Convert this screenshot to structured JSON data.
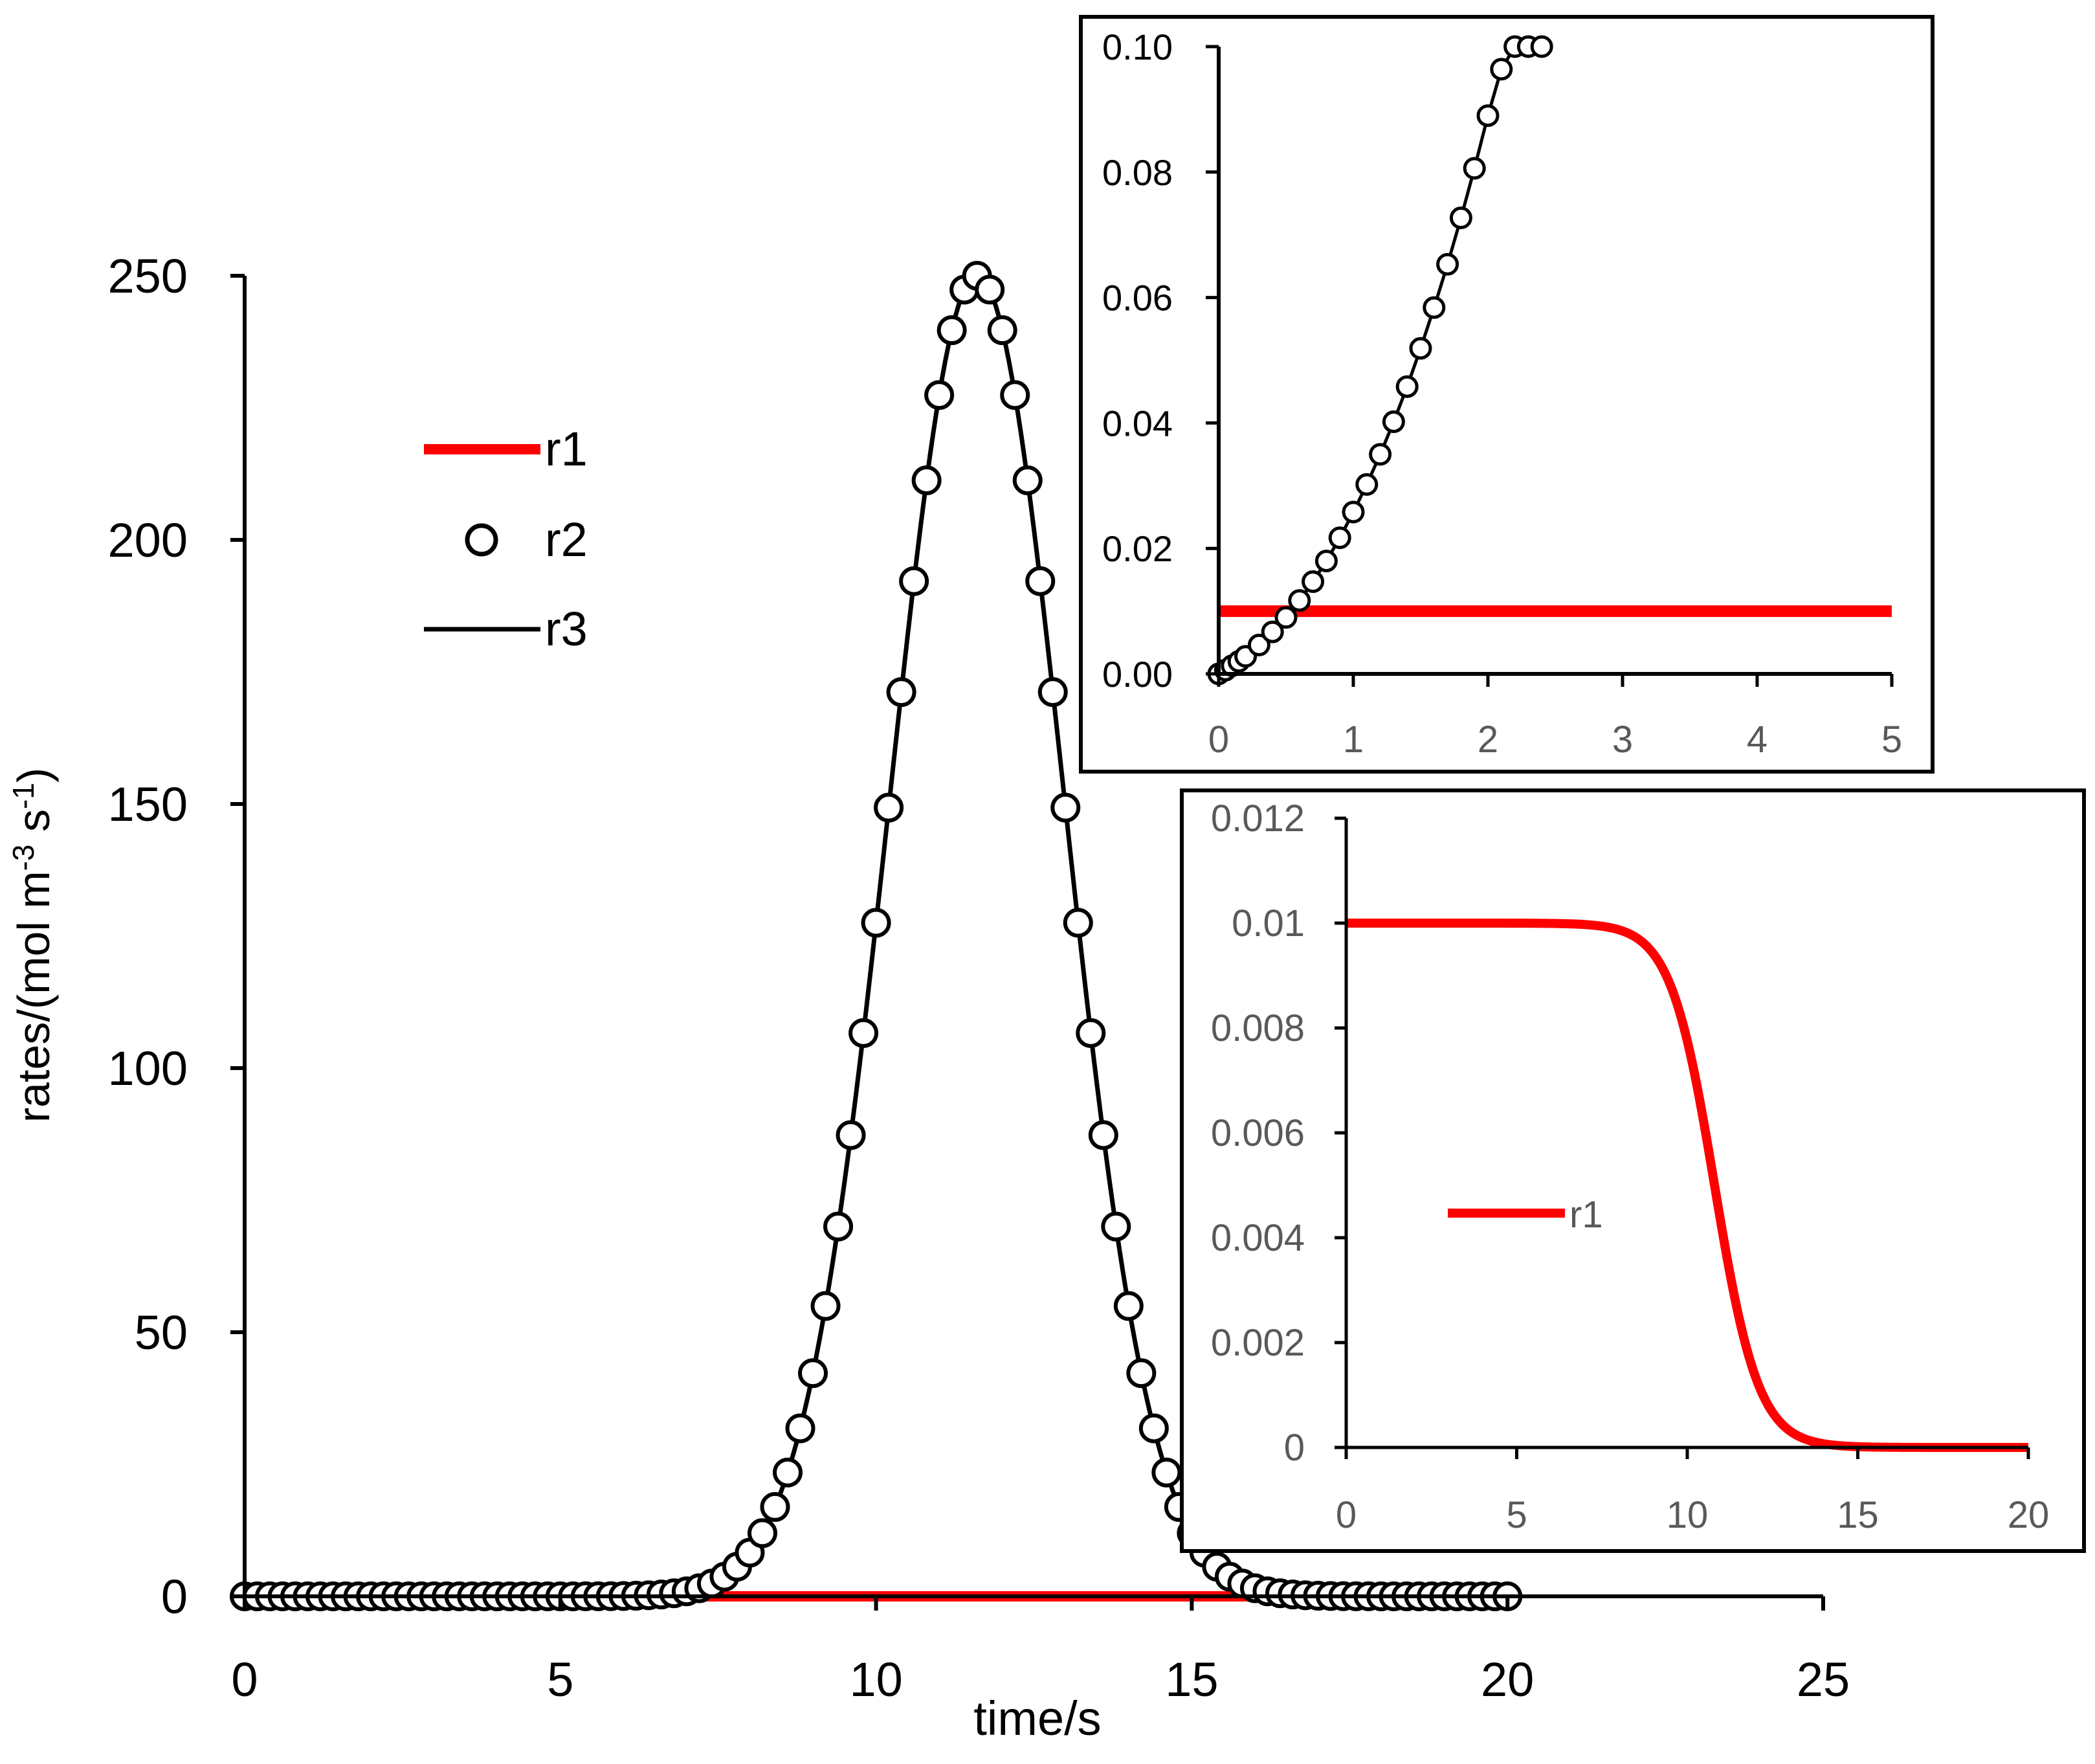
{
  "colors": {
    "r1": "#ff0000",
    "r2_edge": "#000000",
    "r2_face": "#ffffff",
    "r3": "#000000"
  },
  "chart_data": [
    {
      "type": "line",
      "role": "main",
      "xlabel": "time/s",
      "ylabel_text": "rates/(mol m",
      "ylabel_sup1": "-3",
      "ylabel_mid": " s",
      "ylabel_sup2": "-1",
      "ylabel_end": ")",
      "xlim": [
        0,
        25
      ],
      "ylim": [
        0,
        250
      ],
      "xticks": [
        "0",
        "5",
        "10",
        "15",
        "20",
        "25"
      ],
      "yticks": [
        "0",
        "50",
        "100",
        "150",
        "200",
        "250"
      ],
      "legend": [
        "r1",
        "r2",
        "r3"
      ],
      "legend_position": "top-left",
      "series": [
        {
          "name": "r1",
          "style": "thick-red-line",
          "x": [
            0,
            20
          ],
          "y": [
            0,
            0
          ]
        },
        {
          "name": "r2",
          "style": "open-circles",
          "peak_time": 11.6,
          "peak_value": 250,
          "width_s": 1.95,
          "t_start": 0,
          "t_end": 20,
          "t_step": 0.2
        },
        {
          "name": "r3",
          "style": "black-line",
          "peak_time": 11.6,
          "peak_value": 250,
          "width_s": 1.95,
          "t_start": 0,
          "t_end": 20
        }
      ]
    },
    {
      "type": "line",
      "role": "inset-top",
      "xlim": [
        0,
        5
      ],
      "ylim": [
        0,
        0.1
      ],
      "xticks": [
        "0",
        "1",
        "2",
        "3",
        "4",
        "5"
      ],
      "yticks": [
        "0.00",
        "0.02",
        "0.04",
        "0.06",
        "0.08",
        "0.10"
      ],
      "series": [
        {
          "name": "r1",
          "style": "thick-red-line",
          "x": [
            0,
            5
          ],
          "y": [
            0.01,
            0.01
          ]
        },
        {
          "name": "r2",
          "style": "open-circles",
          "x": [
            0.0,
            0.05,
            0.1,
            0.15,
            0.2,
            0.3,
            0.4,
            0.5,
            0.6,
            0.7,
            0.8,
            0.9,
            1.0,
            1.1,
            1.2,
            1.3,
            1.4,
            1.5,
            1.6,
            1.7,
            1.8,
            1.9,
            2.0,
            2.1,
            2.2,
            2.3,
            2.4
          ],
          "y": [
            0.0,
            0.0006,
            0.0013,
            0.002,
            0.0028,
            0.0046,
            0.0067,
            0.009,
            0.0117,
            0.0147,
            0.018,
            0.0217,
            0.0258,
            0.0302,
            0.035,
            0.0402,
            0.0458,
            0.0519,
            0.0584,
            0.0653,
            0.0727,
            0.0806,
            0.089,
            0.0964,
            0.1,
            0.1,
            0.1
          ]
        }
      ]
    },
    {
      "type": "line",
      "role": "inset-bottom",
      "xlim": [
        0,
        20
      ],
      "ylim": [
        0,
        0.012
      ],
      "xticks": [
        "0",
        "5",
        "10",
        "15",
        "20"
      ],
      "yticks": [
        "0",
        "0.002",
        "0.004",
        "0.006",
        "0.008",
        "0.01",
        "0.012"
      ],
      "legend": [
        "r1"
      ],
      "legend_position": "center-left",
      "series": [
        {
          "name": "r1",
          "style": "thick-red-line",
          "model": "sigmoid",
          "y0": 0.01,
          "t_mid": 10.8,
          "k": 1.55,
          "t_start": 0,
          "t_end": 20
        }
      ]
    }
  ]
}
